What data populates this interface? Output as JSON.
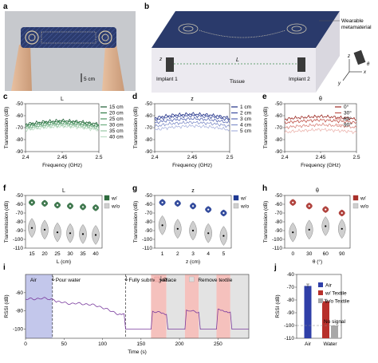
{
  "panels": {
    "a": {
      "label": "a",
      "scale_text": "5 cm"
    },
    "b": {
      "label": "b",
      "metamaterial_label": "Wearable\nmetamaterial",
      "implant1": "Implant 1",
      "implant2": "Implant 2",
      "tissue": "Tissue",
      "distance_symbol": "L",
      "z_symbol": "z",
      "axis_x": "x",
      "axis_y": "y",
      "axis_z": "z",
      "theta_symbol": "θ"
    }
  },
  "chart_data": [
    {
      "id": "c",
      "panel_label": "c",
      "type": "line",
      "title": "L",
      "xlabel": "Frequency (GHz)",
      "ylabel": "Transmission (dB)",
      "xlim": [
        2.4,
        2.5
      ],
      "ylim": [
        -90,
        -50
      ],
      "xticks": [
        "2.4",
        "2.45",
        "2.5"
      ],
      "yticks": [
        "-90",
        "-80",
        "-70",
        "-60",
        "-50"
      ],
      "grid": false,
      "legend": "top-right",
      "series": [
        {
          "name": "15 cm",
          "color": "#1d5e33",
          "values": [
            -67,
            -66,
            -65,
            -64.5,
            -64,
            -64.5,
            -65,
            -66,
            -67
          ]
        },
        {
          "name": "20 cm",
          "color": "#2e7a45",
          "values": [
            -68,
            -67,
            -66,
            -65.5,
            -65,
            -65.5,
            -66,
            -67,
            -68
          ]
        },
        {
          "name": "25 cm",
          "color": "#4c9462",
          "values": [
            -69,
            -68,
            -67,
            -66.5,
            -66,
            -66.5,
            -67,
            -68,
            -69
          ]
        },
        {
          "name": "30 cm",
          "color": "#6fae82",
          "values": [
            -70,
            -69,
            -68,
            -67.5,
            -67,
            -67.5,
            -68,
            -69,
            -70
          ]
        },
        {
          "name": "35 cm",
          "color": "#95c6a3",
          "values": [
            -71,
            -70,
            -69,
            -68.5,
            -68,
            -68.5,
            -69,
            -70,
            -71
          ]
        },
        {
          "name": "40 cm",
          "color": "#bcdcc4",
          "values": [
            -72,
            -71,
            -70,
            -69.5,
            -69,
            -69.5,
            -70,
            -71,
            -72
          ]
        }
      ]
    },
    {
      "id": "d",
      "panel_label": "d",
      "type": "line",
      "title": "z",
      "xlabel": "Frequency (GHz)",
      "ylabel": "Transmission (dB)",
      "xlim": [
        2.4,
        2.5
      ],
      "ylim": [
        -90,
        -50
      ],
      "xticks": [
        "2.4",
        "2.45",
        "2.5"
      ],
      "yticks": [
        "-90",
        "-80",
        "-70",
        "-60",
        "-50"
      ],
      "grid": false,
      "legend": "top-right",
      "series": [
        {
          "name": "1 cm",
          "color": "#1f2f86",
          "values": [
            -62,
            -60.5,
            -59.5,
            -59,
            -58.5,
            -59,
            -59.5,
            -60.5,
            -62
          ]
        },
        {
          "name": "2 cm",
          "color": "#3a4b9e",
          "values": [
            -63.5,
            -62,
            -61,
            -60.5,
            -60,
            -60.5,
            -61,
            -62,
            -63.5
          ]
        },
        {
          "name": "3 cm",
          "color": "#5b6bb4",
          "values": [
            -66,
            -64.5,
            -63.5,
            -63,
            -62.5,
            -63,
            -63.5,
            -64.5,
            -66
          ]
        },
        {
          "name": "4 cm",
          "color": "#8290ca",
          "values": [
            -69,
            -67.5,
            -66.5,
            -66,
            -65.5,
            -66,
            -66.5,
            -67.5,
            -69
          ]
        },
        {
          "name": "5 cm",
          "color": "#aab4de",
          "values": [
            -72,
            -70.5,
            -69.5,
            -69,
            -68.5,
            -69,
            -69.5,
            -70.5,
            -72
          ]
        }
      ]
    },
    {
      "id": "e",
      "panel_label": "e",
      "type": "line",
      "title": "θ",
      "xlabel": "Frequency (GHz)",
      "ylabel": "Transmission (dB)",
      "xlim": [
        2.4,
        2.5
      ],
      "ylim": [
        -90,
        -50
      ],
      "xticks": [
        "2.4",
        "2.45",
        "2.5"
      ],
      "yticks": [
        "-90",
        "-80",
        "-70",
        "-60",
        "-50"
      ],
      "grid": false,
      "legend": "top-right",
      "series": [
        {
          "name": "0°",
          "color": "#9c2a23",
          "values": [
            -63,
            -62,
            -61.5,
            -61,
            -60.5,
            -61,
            -61.5,
            -62,
            -63
          ]
        },
        {
          "name": "30°",
          "color": "#c0554c",
          "values": [
            -66,
            -65,
            -64.5,
            -64,
            -63.5,
            -64,
            -64.5,
            -65,
            -66
          ]
        },
        {
          "name": "60°",
          "color": "#d9857d",
          "values": [
            -70,
            -69,
            -68.5,
            -68,
            -67.5,
            -68,
            -68.5,
            -69,
            -70
          ]
        },
        {
          "name": "90°",
          "color": "#ecb6b0",
          "values": [
            -74,
            -73,
            -72.5,
            -72,
            -71.5,
            -72,
            -72.5,
            -73,
            -74
          ]
        }
      ]
    },
    {
      "id": "f",
      "panel_label": "f",
      "type": "violin",
      "title": "L",
      "xlabel": "L (cm)",
      "ylabel": "Transmission (dB)",
      "ylim": [
        -110,
        -50
      ],
      "yticks": [
        "-110",
        "-100",
        "-90",
        "-80",
        "-70",
        "-60",
        "-50"
      ],
      "categories": [
        "15",
        "20",
        "25",
        "30",
        "35",
        "40"
      ],
      "legend": "top-right",
      "series": [
        {
          "name": "w/",
          "color": "#2e6b3e",
          "values": [
            -58,
            -59,
            -61,
            -62,
            -63,
            -64
          ]
        },
        {
          "name": "w/o",
          "color": "#cfcfcf",
          "values": [
            -87,
            -89,
            -92,
            -93,
            -94,
            -95
          ]
        }
      ]
    },
    {
      "id": "g",
      "panel_label": "g",
      "type": "violin",
      "title": "z",
      "xlabel": "z (cm)",
      "ylabel": "Transmission (dB)",
      "ylim": [
        -110,
        -50
      ],
      "yticks": [
        "-110",
        "-100",
        "-90",
        "-80",
        "-70",
        "-60",
        "-50"
      ],
      "categories": [
        "1",
        "2",
        "3",
        "4",
        "5"
      ],
      "legend": "top-right",
      "series": [
        {
          "name": "w/",
          "color": "#1f3a93",
          "values": [
            -58,
            -59,
            -62,
            -66,
            -70
          ]
        },
        {
          "name": "w/o",
          "color": "#cfcfcf",
          "values": [
            -84,
            -88,
            -90,
            -93,
            -96
          ]
        }
      ]
    },
    {
      "id": "h",
      "panel_label": "h",
      "type": "violin",
      "title": "θ",
      "xlabel": "θ (°)",
      "ylabel": "Transmission (dB)",
      "ylim": [
        -110,
        -50
      ],
      "yticks": [
        "-110",
        "-100",
        "-90",
        "-80",
        "-70",
        "-60",
        "-50"
      ],
      "categories": [
        "0",
        "30",
        "60",
        "90"
      ],
      "legend": "top-right",
      "series": [
        {
          "name": "w/",
          "color": "#a9302a",
          "values": [
            -58,
            -62,
            -66,
            -70
          ]
        },
        {
          "name": "w/o",
          "color": "#cfcfcf",
          "values": [
            -92,
            -89,
            -85,
            -88
          ]
        }
      ]
    },
    {
      "id": "i",
      "panel_label": "i",
      "type": "line",
      "title": "",
      "xlabel": "Time (s)",
      "ylabel": "RSSI (dB)",
      "xlim": [
        0,
        290
      ],
      "ylim": [
        -110,
        -40
      ],
      "xticks": [
        "0",
        "50",
        "100",
        "150",
        "200",
        "250"
      ],
      "yticks": [
        "-100",
        "-80",
        "-60"
      ],
      "annotations": [
        "Air",
        "Pour water",
        "Fully submerged",
        "Place",
        "Remove textile"
      ],
      "shaded_regions": [
        {
          "label": "Air",
          "start": 0,
          "end": 35,
          "color": "#b9bde8"
        },
        {
          "label": "Place",
          "start": 163,
          "end": 183,
          "color": "#f3b6b2"
        },
        {
          "label": "Remove textile",
          "start": 183,
          "end": 207,
          "color": "#dedede"
        },
        {
          "label": "Place",
          "start": 207,
          "end": 225,
          "color": "#f3b6b2"
        },
        {
          "label": "Remove textile",
          "start": 225,
          "end": 248,
          "color": "#dedede"
        },
        {
          "label": "Place",
          "start": 248,
          "end": 266,
          "color": "#f3b6b2"
        },
        {
          "label": "Remove textile",
          "start": 266,
          "end": 290,
          "color": "#dedede"
        }
      ],
      "event_markers": [
        {
          "label": "Pour water",
          "x": 35
        },
        {
          "label": "Fully submerged",
          "x": 130
        }
      ],
      "series": [
        {
          "name": "RSSI",
          "color": "#7a3b9e",
          "x": [
            0,
            10,
            20,
            30,
            35,
            40,
            50,
            60,
            70,
            80,
            90,
            100,
            110,
            120,
            128,
            130,
            135,
            150,
            163,
            165,
            175,
            183,
            185,
            195,
            205,
            207,
            209,
            215,
            225,
            227,
            235,
            245,
            248,
            250,
            258,
            266,
            268,
            280,
            290
          ],
          "values": [
            -67,
            -67,
            -66,
            -67,
            -66,
            -70,
            -71,
            -72,
            -72,
            -72.5,
            -74,
            -76,
            -80,
            -83,
            -84,
            -100,
            -100,
            -100,
            -100,
            -81,
            -82,
            -83,
            -100,
            -100,
            -100,
            -100,
            -79,
            -80,
            -81,
            -100,
            -100,
            -100,
            -100,
            -79,
            -80,
            -81,
            -100,
            -100,
            -100
          ]
        }
      ]
    },
    {
      "id": "j",
      "panel_label": "j",
      "type": "bar",
      "title": "",
      "xlabel": "",
      "ylabel": "RSSI (dB)",
      "ylim": [
        -110,
        -60
      ],
      "yticks": [
        "-110",
        "-100",
        "-90",
        "-80",
        "-70",
        "-60"
      ],
      "categories": [
        "Air",
        "Water"
      ],
      "legend": "top-right",
      "reference_line": -100,
      "series": [
        {
          "name": "Air",
          "color": "#2f3fa8",
          "values": [
            -69,
            null
          ],
          "errors": [
            1.5,
            null
          ]
        },
        {
          "name": "w/ Textile",
          "color": "#b7302b",
          "values": [
            null,
            -81
          ],
          "errors": [
            null,
            1.5
          ]
        },
        {
          "name": "w/o Textile",
          "color": "#a8a8a8",
          "values": [
            null,
            -100
          ],
          "errors": [
            null,
            0
          ]
        }
      ],
      "annotations": [
        "No signal"
      ]
    }
  ]
}
